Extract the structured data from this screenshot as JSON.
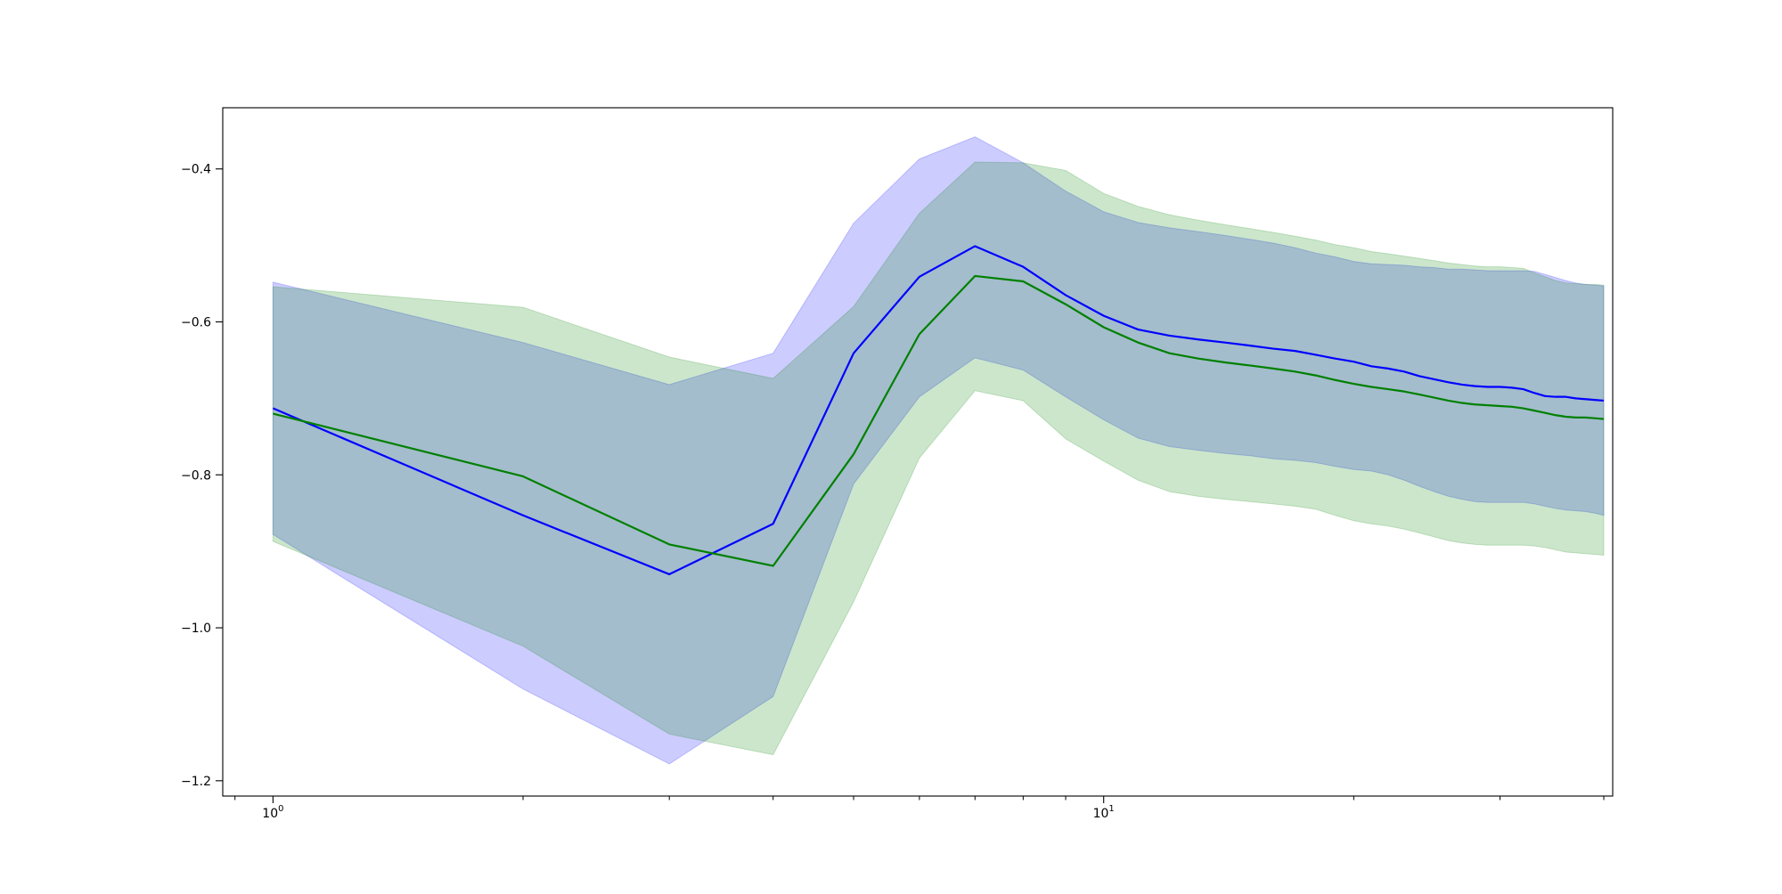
{
  "chart_data": {
    "type": "line",
    "x_scale": "log",
    "xlim": [
      0.87,
      41
    ],
    "ylim": [
      -1.22,
      -0.32
    ],
    "x_ticks": [
      {
        "value": 1,
        "base": "10",
        "exp": "0"
      },
      {
        "value": 10,
        "base": "10",
        "exp": "1"
      }
    ],
    "y_ticks": [
      -1.2,
      -1.0,
      -0.8,
      -0.6,
      -0.4
    ],
    "y_tick_labels": [
      "−1.2",
      "−1.0",
      "−0.8",
      "−0.6",
      "−0.4"
    ],
    "grid": false,
    "x": [
      1,
      2,
      3,
      4,
      5,
      6,
      7,
      8,
      9,
      10,
      11,
      12,
      13,
      14,
      15,
      16,
      17,
      18,
      19,
      20,
      21,
      22,
      23,
      24,
      25,
      26,
      27,
      28,
      29,
      30,
      31,
      32,
      33,
      34,
      35,
      36,
      37,
      38,
      39,
      40
    ],
    "series": [
      {
        "color": "#0000ff",
        "band_color": "#0000ff",
        "band_opacity": 0.2,
        "mean": [
          -0.713,
          -0.853,
          -0.93,
          -0.864,
          -0.641,
          -0.541,
          -0.501,
          -0.528,
          -0.565,
          -0.592,
          -0.61,
          -0.618,
          -0.623,
          -0.627,
          -0.631,
          -0.635,
          -0.638,
          -0.643,
          -0.648,
          -0.652,
          -0.658,
          -0.661,
          -0.665,
          -0.671,
          -0.675,
          -0.679,
          -0.682,
          -0.684,
          -0.685,
          -0.685,
          -0.686,
          -0.688,
          -0.693,
          -0.697,
          -0.698,
          -0.698,
          -0.7,
          -0.701,
          -0.702,
          -0.703
        ],
        "lower": [
          -0.878,
          -1.08,
          -1.178,
          -1.09,
          -0.812,
          -0.698,
          -0.647,
          -0.663,
          -0.698,
          -0.728,
          -0.752,
          -0.763,
          -0.768,
          -0.772,
          -0.775,
          -0.779,
          -0.781,
          -0.784,
          -0.789,
          -0.793,
          -0.795,
          -0.8,
          -0.807,
          -0.815,
          -0.822,
          -0.828,
          -0.832,
          -0.835,
          -0.836,
          -0.836,
          -0.836,
          -0.836,
          -0.838,
          -0.841,
          -0.844,
          -0.846,
          -0.847,
          -0.848,
          -0.85,
          -0.853
        ],
        "upper": [
          -0.548,
          -0.627,
          -0.682,
          -0.641,
          -0.471,
          -0.387,
          -0.358,
          -0.392,
          -0.429,
          -0.456,
          -0.47,
          -0.477,
          -0.482,
          -0.487,
          -0.492,
          -0.497,
          -0.503,
          -0.51,
          -0.515,
          -0.521,
          -0.524,
          -0.525,
          -0.526,
          -0.528,
          -0.529,
          -0.531,
          -0.531,
          -0.532,
          -0.533,
          -0.533,
          -0.533,
          -0.533,
          -0.534,
          -0.538,
          -0.542,
          -0.546,
          -0.549,
          -0.551,
          -0.552,
          -0.553
        ]
      },
      {
        "color": "#008000",
        "band_color": "#008000",
        "band_opacity": 0.2,
        "mean": [
          -0.72,
          -0.802,
          -0.891,
          -0.919,
          -0.773,
          -0.616,
          -0.54,
          -0.547,
          -0.577,
          -0.607,
          -0.627,
          -0.641,
          -0.648,
          -0.653,
          -0.657,
          -0.661,
          -0.665,
          -0.67,
          -0.676,
          -0.681,
          -0.685,
          -0.688,
          -0.691,
          -0.695,
          -0.699,
          -0.703,
          -0.706,
          -0.708,
          -0.709,
          -0.71,
          -0.711,
          -0.713,
          -0.716,
          -0.719,
          -0.722,
          -0.724,
          -0.725,
          -0.725,
          -0.726,
          -0.727
        ],
        "lower": [
          -0.887,
          -1.024,
          -1.139,
          -1.166,
          -0.966,
          -0.778,
          -0.69,
          -0.703,
          -0.753,
          -0.782,
          -0.807,
          -0.822,
          -0.828,
          -0.832,
          -0.835,
          -0.838,
          -0.841,
          -0.845,
          -0.853,
          -0.86,
          -0.864,
          -0.867,
          -0.871,
          -0.876,
          -0.881,
          -0.886,
          -0.889,
          -0.891,
          -0.892,
          -0.892,
          -0.892,
          -0.892,
          -0.893,
          -0.895,
          -0.898,
          -0.901,
          -0.902,
          -0.903,
          -0.904,
          -0.905
        ],
        "upper": [
          -0.554,
          -0.581,
          -0.646,
          -0.674,
          -0.58,
          -0.458,
          -0.391,
          -0.392,
          -0.402,
          -0.432,
          -0.449,
          -0.46,
          -0.467,
          -0.473,
          -0.478,
          -0.483,
          -0.488,
          -0.493,
          -0.499,
          -0.503,
          -0.508,
          -0.511,
          -0.514,
          -0.517,
          -0.52,
          -0.523,
          -0.525,
          -0.527,
          -0.528,
          -0.528,
          -0.529,
          -0.53,
          -0.536,
          -0.541,
          -0.546,
          -0.549,
          -0.55,
          -0.551,
          -0.551,
          -0.552
        ]
      }
    ]
  }
}
